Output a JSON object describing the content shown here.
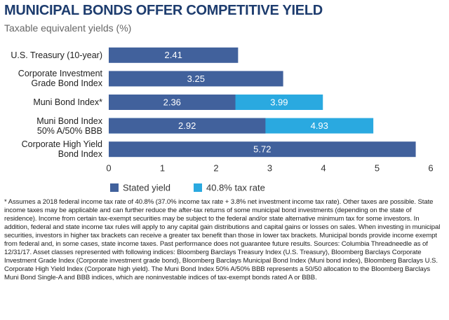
{
  "chart_data": {
    "type": "bar",
    "title": "MUNICIPAL BONDS OFFER COMPETITIVE YIELD",
    "subtitle": "Taxable equivalent yields (%)",
    "categories": [
      "U.S. Treasury (10-year)",
      "Corporate Investment\nGrade Bond Index",
      "Muni Bond Index*",
      "Muni Bond Index\n50% A/50% BBB",
      "Corporate High Yield\nBond Index"
    ],
    "series": [
      {
        "name": "Stated yield",
        "color": "#41619c",
        "values": [
          2.41,
          3.25,
          2.36,
          2.92,
          5.72
        ]
      },
      {
        "name": "40.8% tax rate",
        "color": "#2aa9e0",
        "values": [
          null,
          null,
          3.99,
          4.93,
          null
        ]
      }
    ],
    "xlim": [
      0,
      6
    ],
    "xticks": [
      0,
      1,
      2,
      3,
      4,
      5,
      6
    ],
    "grid": false,
    "footnote": "* Assumes a 2018 federal income tax rate of 40.8% (37.0% income tax rate + 3.8% net investment income tax rate). Other taxes are possible. State income taxes may be applicable and can further reduce the after-tax returns of some municipal bond investments (depending on the state of residence). Income from certain tax-exempt securities may be subject to the federal and/or state alternative minimum tax for some investors. In addition, federal and state income tax rules will apply to any capital gain distributions and capital gains or losses on sales. When investing in municipal securities, investors in higher tax brackets can receive a greater tax benefit than those in lower tax brackets. Municipal bonds provide income exempt from federal and, in some cases, state income taxes. Past performance does not guarantee future results. Sources: Columbia Threadneedle as of 12/31/17. Asset classes represented with following indices: Bloomberg Barclays Treasury Index (U.S. Treasury), Bloomberg Barclays Corporate Investment Grade Index (Corporate investment grade bond), Bloomberg Barclays Municipal Bond Index (Muni bond index), Bloomberg Barclays U.S. Corporate High Yield Index (Corporate high yield). The Muni Bond Index 50% A/50% BBB represents a 50/50 allocation to the Bloomberg Barclays Muni Bond Single-A and BBB indices, which are noninvestable indices of tax-exempt bonds rated A or BBB."
  }
}
